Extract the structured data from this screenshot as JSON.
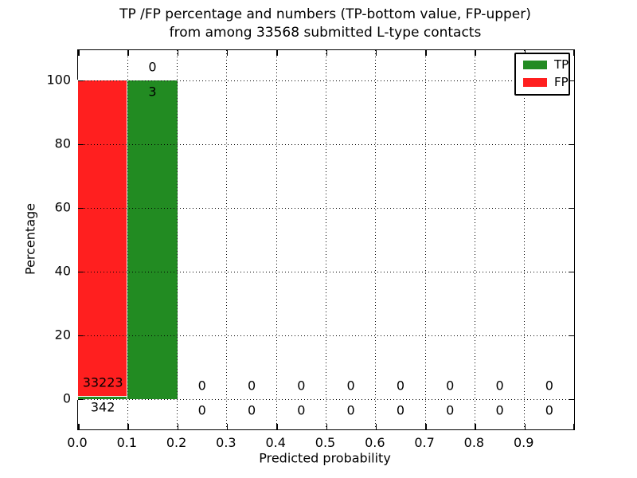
{
  "chart_data": {
    "type": "bar",
    "stacked": true,
    "title_line1": "TP /FP percentage and numbers (TP-bottom value, FP-upper)",
    "title_line2": "from among 33568 submitted L-type contacts",
    "total_contacts": 33568,
    "xlabel": "Predicted probability",
    "ylabel": "Percentage",
    "x_tick_labels": [
      "0.0",
      "0.1",
      "0.2",
      "0.3",
      "0.4",
      "0.5",
      "0.6",
      "0.7",
      "0.8",
      "0.9"
    ],
    "y_tick_values": [
      0,
      20,
      40,
      60,
      80,
      100
    ],
    "xlim": [
      0.0,
      1.0
    ],
    "ylim_percent": [
      0,
      100
    ],
    "grid": "dotted",
    "legend_position": "upper right",
    "colors": {
      "tp": "#228b22",
      "fp": "#ff1f1f",
      "grid": "#000000",
      "text": "#000000",
      "background": "#ffffff"
    },
    "legend": [
      {
        "label": "TP",
        "color_key": "tp"
      },
      {
        "label": "FP",
        "color_key": "fp"
      }
    ],
    "bins": [
      {
        "x0": 0.0,
        "x1": 0.1,
        "tp": 342,
        "fp": 33223,
        "tp_pct": 1.02,
        "fp_pct": 98.98
      },
      {
        "x0": 0.1,
        "x1": 0.2,
        "tp": 3,
        "fp": 0,
        "tp_pct": 100,
        "fp_pct": 0
      },
      {
        "x0": 0.2,
        "x1": 0.3,
        "tp": 0,
        "fp": 0,
        "tp_pct": 0,
        "fp_pct": 0
      },
      {
        "x0": 0.3,
        "x1": 0.4,
        "tp": 0,
        "fp": 0,
        "tp_pct": 0,
        "fp_pct": 0
      },
      {
        "x0": 0.4,
        "x1": 0.5,
        "tp": 0,
        "fp": 0,
        "tp_pct": 0,
        "fp_pct": 0
      },
      {
        "x0": 0.5,
        "x1": 0.6,
        "tp": 0,
        "fp": 0,
        "tp_pct": 0,
        "fp_pct": 0
      },
      {
        "x0": 0.6,
        "x1": 0.7,
        "tp": 0,
        "fp": 0,
        "tp_pct": 0,
        "fp_pct": 0
      },
      {
        "x0": 0.7,
        "x1": 0.8,
        "tp": 0,
        "fp": 0,
        "tp_pct": 0,
        "fp_pct": 0
      },
      {
        "x0": 0.8,
        "x1": 0.9,
        "tp": 0,
        "fp": 0,
        "tp_pct": 0,
        "fp_pct": 0
      },
      {
        "x0": 0.9,
        "x1": 1.0,
        "tp": 0,
        "fp": 0,
        "tp_pct": 0,
        "fp_pct": 0
      }
    ]
  }
}
